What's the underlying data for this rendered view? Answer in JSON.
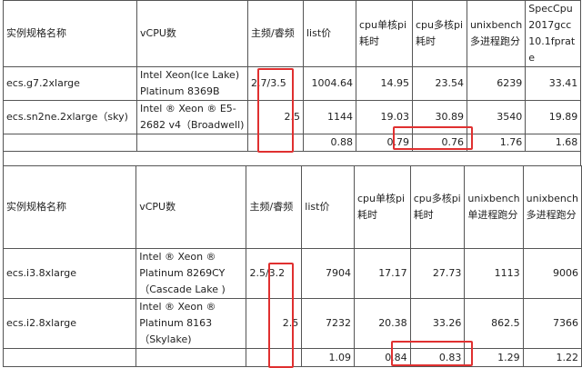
{
  "table1": {
    "headers": [
      "实例规格名称",
      "vCPU数",
      "主频/睿频",
      "list价",
      "cpu单核pi耗时",
      "cpu多核pi耗时",
      "unixbench多进程跑分",
      "SpecCpu2017gcc10.1fprate"
    ],
    "rows": [
      [
        "ecs.g7.2xlarge",
        "Intel Xeon(Ice Lake) Platinum 8369B",
        "2.7/3.5",
        "1004.64",
        "14.95",
        "23.54",
        "6239",
        "33.41"
      ],
      [
        "ecs.sn2ne.2xlarge（sky)",
        "Intel ® Xeon ® E5-2682 v4（Broadwell)",
        "2.5",
        "1144",
        "19.03",
        "30.89",
        "3540",
        "19.89"
      ],
      [
        "",
        "",
        "",
        "0.88",
        "0.79",
        "0.76",
        "1.76",
        "1.68"
      ]
    ]
  },
  "table2": {
    "headers": [
      "实例规格名称",
      "vCPU数",
      "主频/睿频",
      "list价",
      "cpu单核pi耗时",
      "cpu多核pi耗时",
      "unixbench单进程跑分",
      "unixbench多进程跑分"
    ],
    "rows": [
      [
        "ecs.i3.8xlarge",
        "Intel ® Xeon ® Platinum 8269CY（Cascade Lake )",
        "2.5/3.2",
        "7904",
        "17.17",
        "27.73",
        "1113",
        "9006"
      ],
      [
        "ecs.i2.8xlarge",
        "Intel ® Xeon ® Platinum 8163（Skylake)",
        "2.5",
        "7232",
        "20.38",
        "33.26",
        "862.5",
        "7366"
      ],
      [
        "",
        "",
        "",
        "1.09",
        "0.84",
        "0.83",
        "1.29",
        "1.22"
      ]
    ]
  },
  "highlight_color": "#e03030"
}
